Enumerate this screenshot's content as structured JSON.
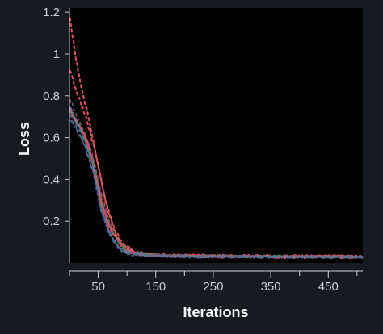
{
  "chart_data": {
    "type": "line",
    "title": "",
    "xlabel": "Iterations",
    "ylabel": "Loss",
    "xlim": [
      0,
      510
    ],
    "ylim": [
      0,
      1.22
    ],
    "xticks": [
      50,
      150,
      250,
      350,
      450
    ],
    "yticks": [
      0.2,
      0.4,
      0.6,
      0.8,
      1,
      1.2
    ],
    "ytick_labels": [
      "0.2",
      "0.4",
      "0.6",
      "0.8",
      "1",
      "1.2"
    ],
    "legend": "none",
    "grid": false,
    "series": [
      {
        "color": "#ef5a67",
        "dashed": false,
        "width": 2.6,
        "points": [
          [
            1,
            0.73
          ],
          [
            10,
            0.69
          ],
          [
            25,
            0.62
          ],
          [
            40,
            0.5
          ],
          [
            55,
            0.3
          ],
          [
            70,
            0.17
          ],
          [
            85,
            0.1
          ],
          [
            100,
            0.06
          ],
          [
            120,
            0.043
          ],
          [
            150,
            0.036
          ],
          [
            200,
            0.033
          ],
          [
            300,
            0.031
          ],
          [
            400,
            0.03
          ],
          [
            510,
            0.03
          ]
        ]
      },
      {
        "color": "#ef5a67",
        "dashed": true,
        "width": 2.2,
        "points": [
          [
            1,
            1.17
          ],
          [
            10,
            1.0
          ],
          [
            20,
            0.84
          ],
          [
            35,
            0.68
          ],
          [
            50,
            0.46
          ],
          [
            65,
            0.27
          ],
          [
            80,
            0.14
          ],
          [
            95,
            0.08
          ],
          [
            115,
            0.048
          ],
          [
            150,
            0.037
          ],
          [
            300,
            0.032
          ],
          [
            510,
            0.031
          ]
        ]
      },
      {
        "color": "#ef5a67",
        "dashed": true,
        "width": 2.0,
        "points": [
          [
            1,
            0.92
          ],
          [
            12,
            0.82
          ],
          [
            28,
            0.7
          ],
          [
            45,
            0.53
          ],
          [
            60,
            0.33
          ],
          [
            75,
            0.18
          ],
          [
            90,
            0.1
          ],
          [
            110,
            0.055
          ],
          [
            150,
            0.038
          ],
          [
            300,
            0.032
          ],
          [
            510,
            0.031
          ]
        ]
      },
      {
        "color": "#6c7fa8",
        "dashed": false,
        "width": 1.6,
        "points": [
          [
            1,
            0.75
          ],
          [
            12,
            0.68
          ],
          [
            25,
            0.6
          ],
          [
            40,
            0.47
          ],
          [
            55,
            0.27
          ],
          [
            70,
            0.14
          ],
          [
            85,
            0.08
          ],
          [
            100,
            0.05
          ],
          [
            130,
            0.038
          ],
          [
            200,
            0.032
          ],
          [
            510,
            0.028
          ]
        ]
      },
      {
        "color": "#4f6aa0",
        "dashed": true,
        "width": 1.6,
        "points": [
          [
            1,
            0.7
          ],
          [
            12,
            0.65
          ],
          [
            25,
            0.58
          ],
          [
            40,
            0.44
          ],
          [
            55,
            0.25
          ],
          [
            70,
            0.13
          ],
          [
            85,
            0.07
          ],
          [
            100,
            0.045
          ],
          [
            130,
            0.035
          ],
          [
            200,
            0.031
          ],
          [
            510,
            0.027
          ]
        ]
      },
      {
        "color": "#3f8f5a",
        "dashed": true,
        "width": 1.6,
        "points": [
          [
            1,
            0.72
          ],
          [
            14,
            0.66
          ],
          [
            28,
            0.58
          ],
          [
            42,
            0.47
          ],
          [
            58,
            0.3
          ],
          [
            72,
            0.17
          ],
          [
            88,
            0.09
          ],
          [
            105,
            0.055
          ],
          [
            140,
            0.04
          ],
          [
            220,
            0.034
          ],
          [
            510,
            0.03
          ]
        ]
      },
      {
        "color": "#7a5f78",
        "dashed": true,
        "width": 1.6,
        "points": [
          [
            1,
            0.78
          ],
          [
            12,
            0.71
          ],
          [
            26,
            0.63
          ],
          [
            40,
            0.52
          ],
          [
            56,
            0.33
          ],
          [
            70,
            0.19
          ],
          [
            86,
            0.1
          ],
          [
            102,
            0.06
          ],
          [
            140,
            0.04
          ],
          [
            220,
            0.034
          ],
          [
            510,
            0.031
          ]
        ]
      },
      {
        "color": "#5a6fa0",
        "dashed": false,
        "width": 1.4,
        "points": [
          [
            1,
            0.68
          ],
          [
            12,
            0.64
          ],
          [
            25,
            0.57
          ],
          [
            40,
            0.45
          ],
          [
            55,
            0.26
          ],
          [
            70,
            0.14
          ],
          [
            85,
            0.075
          ],
          [
            100,
            0.048
          ],
          [
            130,
            0.036
          ],
          [
            200,
            0.031
          ],
          [
            510,
            0.028
          ]
        ]
      }
    ]
  }
}
